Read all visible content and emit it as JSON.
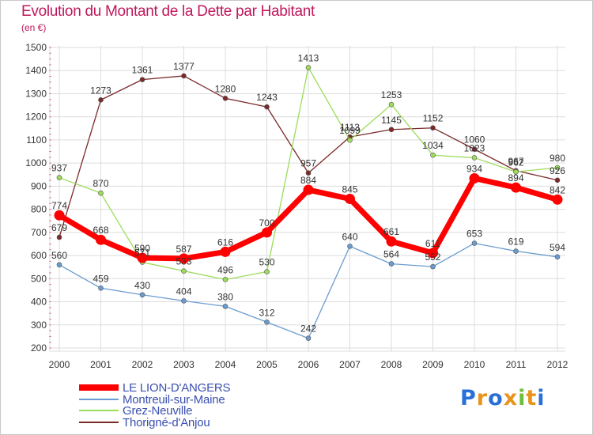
{
  "title": "Evolution du Montant de la Dette par Habitant",
  "subtitle": "(en €)",
  "logo": {
    "text": "Proxiti",
    "letters": [
      {
        "ch": "P",
        "color": "#2a6fd6"
      },
      {
        "ch": "r",
        "color": "#e8941a"
      },
      {
        "ch": "o",
        "color": "#2a6fd6"
      },
      {
        "ch": "x",
        "color": "#e8941a"
      },
      {
        "ch": "i",
        "color": "#6cbf3a"
      },
      {
        "ch": "t",
        "color": "#e8941a"
      },
      {
        "ch": "i",
        "color": "#2a6fd6"
      }
    ]
  },
  "chart_data": {
    "type": "line",
    "x": [
      "2000",
      "2001",
      "2002",
      "2003",
      "2004",
      "2005",
      "2006",
      "2007",
      "2008",
      "2009",
      "2010",
      "2011",
      "2012"
    ],
    "ylim": [
      200,
      1500
    ],
    "yticks": [
      "200",
      "300",
      "400",
      "500",
      "600",
      "700",
      "800",
      "900",
      "1000",
      "1100",
      "1200",
      "1300",
      "1400",
      "1500"
    ],
    "grid": true,
    "legend_position": "bottom-left",
    "series": [
      {
        "name": "LE LION-D'ANGERS",
        "color": "#ff0000",
        "values": [
          774,
          668,
          590,
          587,
          616,
          700,
          884,
          845,
          661,
          611,
          934,
          894,
          842
        ],
        "labels": [
          "774",
          "668",
          "590",
          "587",
          "616",
          "700",
          "884",
          "845",
          "661",
          "611",
          "934",
          "894",
          "842"
        ]
      },
      {
        "name": "Montreuil-sur-Maine",
        "color": "#6a9ccf",
        "values": [
          560,
          459,
          430,
          404,
          380,
          312,
          242,
          640,
          564,
          552,
          653,
          619,
          594
        ],
        "labels": [
          "560",
          "459",
          "430",
          "404",
          "380",
          "312",
          "242",
          "640",
          "564",
          "552",
          "653",
          "619",
          "594"
        ]
      },
      {
        "name": "Grez-Neuville",
        "color": "#9cdc5a",
        "values": [
          937,
          870,
          571,
          533,
          496,
          530,
          1413,
          1099,
          1253,
          1034,
          1023,
          962,
          980
        ],
        "labels": [
          "937",
          "870",
          "571",
          "533",
          "496",
          "530",
          "1413",
          "1099",
          "1253",
          "1034",
          "1023",
          "962",
          "980"
        ]
      },
      {
        "name": "Thorigné-d'Anjou",
        "color": "#7b2a2a",
        "values": [
          679,
          1273,
          1361,
          1377,
          1280,
          1243,
          957,
          1113,
          1145,
          1152,
          1060,
          967,
          926
        ],
        "labels": [
          "679",
          "1273",
          "1361",
          "1377",
          "1280",
          "1243",
          "957",
          "1113",
          "1145",
          "1152",
          "1060",
          "967",
          "926"
        ]
      }
    ]
  }
}
